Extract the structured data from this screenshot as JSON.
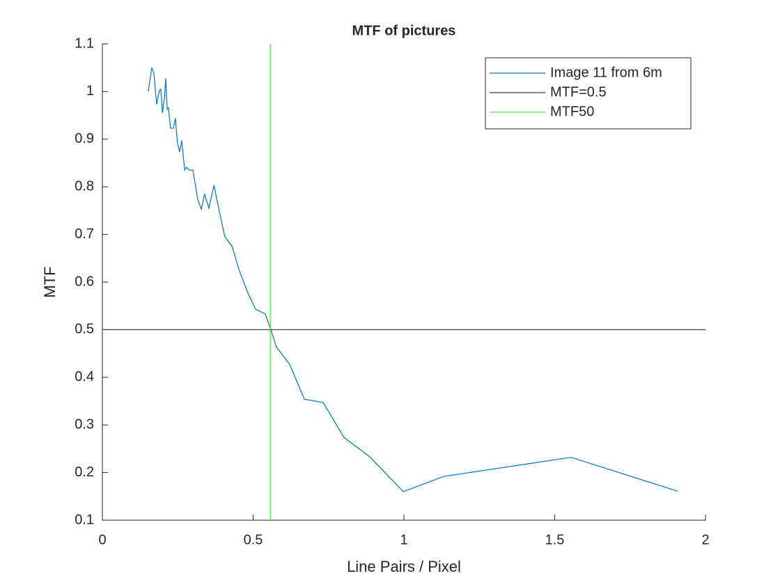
{
  "chart_data": {
    "type": "line",
    "title": "MTF of pictures",
    "x_label": "Line Pairs / Pixel",
    "y_label": "MTF",
    "xlim": [
      0,
      2
    ],
    "ylim": [
      0.1,
      1.1
    ],
    "xticks": [
      0,
      0.5,
      1,
      1.5,
      2
    ],
    "yticks": [
      0.1,
      0.2,
      0.3,
      0.4,
      0.5,
      0.6,
      0.7,
      0.8,
      0.9,
      1,
      1.1
    ],
    "legend": "northeast",
    "grid": false,
    "series": [
      {
        "name": "Image 11 from 6m",
        "color": "#0072bd",
        "x": [
          0.152,
          0.164,
          0.171,
          0.18,
          0.189,
          0.194,
          0.199,
          0.206,
          0.21,
          0.215,
          0.219,
          0.226,
          0.236,
          0.242,
          0.249,
          0.256,
          0.263,
          0.273,
          0.279,
          0.289,
          0.3,
          0.316,
          0.328,
          0.339,
          0.353,
          0.37,
          0.39,
          0.406,
          0.43,
          0.453,
          0.48,
          0.508,
          0.54,
          0.559,
          0.577,
          0.621,
          0.67,
          0.732,
          0.801,
          0.885,
          0.998,
          1.132,
          1.554,
          1.908
        ],
        "values": [
          1.0,
          1.05,
          1.037,
          0.973,
          1.002,
          1.005,
          0.955,
          0.987,
          1.028,
          0.963,
          0.966,
          0.923,
          0.923,
          0.944,
          0.892,
          0.873,
          0.897,
          0.835,
          0.841,
          0.835,
          0.835,
          0.774,
          0.753,
          0.785,
          0.755,
          0.803,
          0.742,
          0.695,
          0.675,
          0.626,
          0.581,
          0.543,
          0.533,
          0.499,
          0.464,
          0.427,
          0.354,
          0.347,
          0.274,
          0.234,
          0.16,
          0.192,
          0.232,
          0.161
        ]
      },
      {
        "name": "MTF=0.5",
        "color": "#404040",
        "x": [
          0,
          2
        ],
        "values": [
          0.5,
          0.5
        ]
      },
      {
        "name": "MTF50",
        "color": "#4de04d",
        "x": [
          0.557,
          0.557
        ],
        "values": [
          0.1,
          1.1
        ]
      }
    ]
  }
}
